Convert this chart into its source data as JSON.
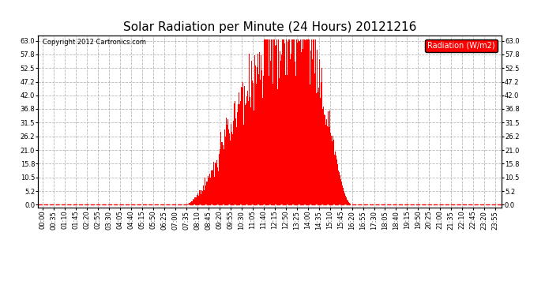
{
  "title": "Solar Radiation per Minute (24 Hours) 20121216",
  "copyright_text": "Copyright 2012 Cartronics.com",
  "legend_label": "Radiation (W/m2)",
  "bar_color": "#ff0000",
  "background_color": "#ffffff",
  "grid_color": "#b0b0b0",
  "zero_line_color": "#ff0000",
  "yticks": [
    0.0,
    5.2,
    10.5,
    15.8,
    21.0,
    26.2,
    31.5,
    36.8,
    42.0,
    47.2,
    52.5,
    57.8,
    63.0
  ],
  "ylim": [
    -1.0,
    65.0
  ],
  "title_fontsize": 11,
  "tick_fontsize": 6,
  "legend_fontsize": 7,
  "copyright_fontsize": 6,
  "sunrise_minute": 455,
  "sunset_minute": 980,
  "peak_minute": 810,
  "peak_value": 63.0,
  "xtick_interval": 35
}
